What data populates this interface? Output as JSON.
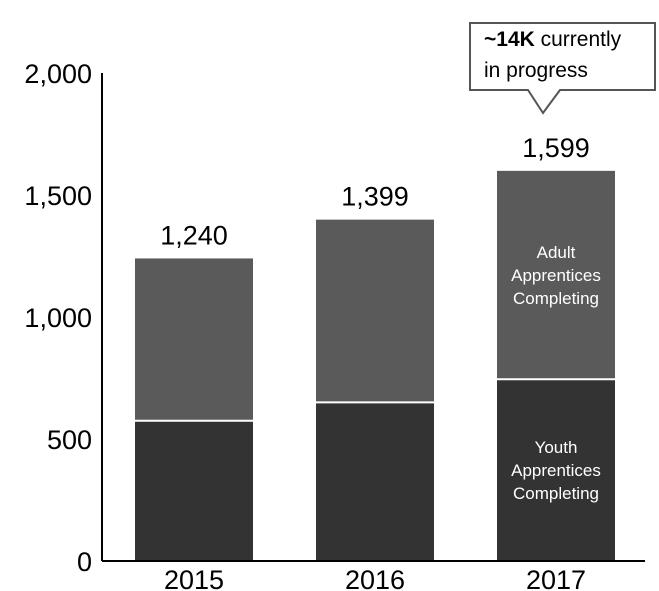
{
  "chart_data": {
    "type": "bar",
    "stacked": true,
    "categories": [
      "2015",
      "2016",
      "2017"
    ],
    "series": [
      {
        "name": "Youth Apprentices Completing",
        "values": [
          575,
          650,
          745
        ],
        "color": "#333333"
      },
      {
        "name": "Adult Apprentices Completing",
        "values": [
          665,
          749,
          854
        ],
        "color": "#5a5a5a"
      }
    ],
    "totals": [
      "1,240",
      "1,399",
      "1,599"
    ],
    "totals_values": [
      1240,
      1399,
      1599
    ],
    "yticks": [
      {
        "value": 0,
        "label": "0"
      },
      {
        "value": 500,
        "label": "500"
      },
      {
        "value": 1000,
        "label": "1,000"
      },
      {
        "value": 1500,
        "label": "1,500"
      },
      {
        "value": 2000,
        "label": "2,000"
      }
    ],
    "ylim": [
      0,
      2000
    ],
    "grid": false,
    "legend": "none",
    "segment_labels": {
      "adult": [
        "Adult",
        "Apprentices",
        "Completing"
      ],
      "youth": [
        "Youth",
        "Apprentices",
        "Completing"
      ]
    },
    "callout": {
      "bold": "~14K",
      "line1_rest": " currently",
      "line2": "in progress"
    }
  }
}
